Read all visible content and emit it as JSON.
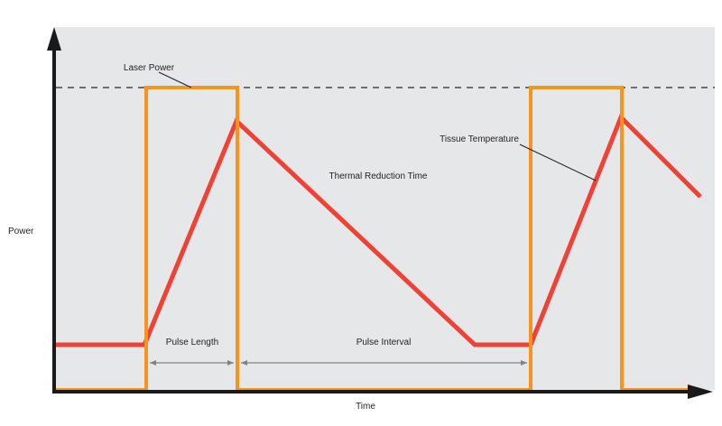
{
  "axes": {
    "y_label": "Power",
    "x_label": "Time"
  },
  "annotations": {
    "laser_power": "Laser Power",
    "tissue_temperature": "Tissue Temperature",
    "thermal_reduction_time": "Thermal Reduction Time",
    "pulse_length": "Pulse Length",
    "pulse_interval": "Pulse Interval"
  },
  "colors": {
    "background": "#e6e7e8",
    "axis": "#1a1a1a",
    "laser_power": "#f7941d",
    "tissue_temperature": "#ef4136",
    "max_power_line": "#6d6e71",
    "dimension_arrow": "#808285"
  }
}
